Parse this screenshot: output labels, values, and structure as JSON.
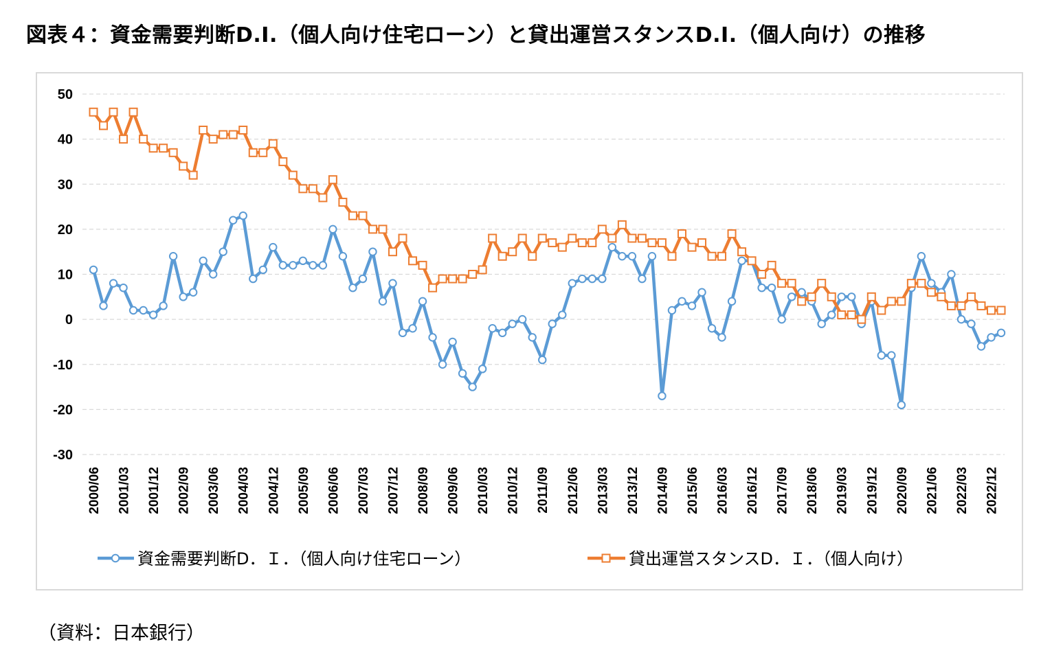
{
  "title": "図表４：資金需要判断D.I.（個人向け住宅ローン）と貸出運営スタンスD.I.（個人向け）の推移",
  "source": "（資料：日本銀行）",
  "colors": {
    "series1": "#5b9bd5",
    "series2": "#ed7d31",
    "grid": "#d9d9d9",
    "frame": "#d9d9d9"
  },
  "chart_data": {
    "type": "line",
    "title": "",
    "xlabel": "",
    "ylabel": "",
    "ylim": [
      -30,
      50
    ],
    "yticks": [
      50,
      40,
      30,
      20,
      10,
      0,
      -10,
      -20,
      -30
    ],
    "grid": true,
    "legend_position": "bottom",
    "x_tick_labels": [
      "2000/06",
      "2001/03",
      "2001/12",
      "2002/09",
      "2003/06",
      "2004/03",
      "2004/12",
      "2005/09",
      "2006/06",
      "2007/03",
      "2007/12",
      "2008/09",
      "2009/06",
      "2010/03",
      "2010/12",
      "2011/09",
      "2012/06",
      "2013/03",
      "2013/12",
      "2014/09",
      "2015/06",
      "2016/03",
      "2016/12",
      "2017/09",
      "2018/06",
      "2019/03",
      "2019/12",
      "2020/09",
      "2021/06",
      "2022/03",
      "2022/12"
    ],
    "categories": [
      "2000/06",
      "2000/09",
      "2000/12",
      "2001/03",
      "2001/06",
      "2001/09",
      "2001/12",
      "2002/03",
      "2002/06",
      "2002/09",
      "2002/12",
      "2003/03",
      "2003/06",
      "2003/09",
      "2003/12",
      "2004/03",
      "2004/06",
      "2004/09",
      "2004/12",
      "2005/03",
      "2005/06",
      "2005/09",
      "2005/12",
      "2006/03",
      "2006/06",
      "2006/09",
      "2006/12",
      "2007/03",
      "2007/06",
      "2007/09",
      "2007/12",
      "2008/03",
      "2008/06",
      "2008/09",
      "2008/12",
      "2009/03",
      "2009/06",
      "2009/09",
      "2009/12",
      "2010/03",
      "2010/06",
      "2010/09",
      "2010/12",
      "2011/03",
      "2011/06",
      "2011/09",
      "2011/12",
      "2012/03",
      "2012/06",
      "2012/09",
      "2012/12",
      "2013/03",
      "2013/06",
      "2013/09",
      "2013/12",
      "2014/03",
      "2014/06",
      "2014/09",
      "2014/12",
      "2015/03",
      "2015/06",
      "2015/09",
      "2015/12",
      "2016/03",
      "2016/06",
      "2016/09",
      "2016/12",
      "2017/03",
      "2017/06",
      "2017/09",
      "2017/12",
      "2018/03",
      "2018/06",
      "2018/09",
      "2018/12",
      "2019/03",
      "2019/06",
      "2019/09",
      "2019/12",
      "2020/03",
      "2020/06",
      "2020/09",
      "2020/12",
      "2021/03",
      "2021/06",
      "2021/09",
      "2021/12",
      "2022/03",
      "2022/06",
      "2022/09",
      "2022/12",
      "2023/03"
    ],
    "series": [
      {
        "name": "資金需要判断D．Ｉ．（個人向け住宅ローン）",
        "marker": "circle",
        "values": [
          11,
          3,
          8,
          7,
          2,
          2,
          1,
          3,
          14,
          5,
          6,
          13,
          10,
          15,
          22,
          23,
          9,
          11,
          16,
          12,
          12,
          13,
          12,
          12,
          20,
          14,
          7,
          9,
          15,
          4,
          8,
          -3,
          -2,
          4,
          -4,
          -10,
          -5,
          -12,
          -15,
          -11,
          -2,
          -3,
          -1,
          0,
          -4,
          -9,
          -1,
          1,
          8,
          9,
          9,
          9,
          16,
          14,
          14,
          9,
          14,
          -17,
          2,
          4,
          3,
          6,
          -2,
          -4,
          4,
          13,
          13,
          7,
          7,
          0,
          5,
          6,
          4,
          -1,
          1,
          5,
          5,
          -1,
          4,
          -8,
          -8,
          -19,
          7,
          14,
          8,
          6,
          10,
          0,
          -1,
          -6,
          -4,
          -3
        ]
      },
      {
        "name": "貸出運営スタンスD．Ｉ．（個人向け）",
        "marker": "square",
        "values": [
          46,
          43,
          46,
          40,
          46,
          40,
          38,
          38,
          37,
          34,
          32,
          42,
          40,
          41,
          41,
          42,
          37,
          37,
          39,
          35,
          32,
          29,
          29,
          27,
          31,
          26,
          23,
          23,
          20,
          20,
          15,
          18,
          13,
          12,
          7,
          9,
          9,
          9,
          10,
          11,
          18,
          14,
          15,
          18,
          14,
          18,
          17,
          16,
          18,
          17,
          17,
          20,
          18,
          21,
          18,
          18,
          17,
          17,
          14,
          19,
          16,
          17,
          14,
          14,
          19,
          15,
          13,
          10,
          12,
          8,
          8,
          4,
          5,
          8,
          5,
          1,
          1,
          0,
          5,
          2,
          4,
          4,
          8,
          8,
          6,
          5,
          3,
          3,
          5,
          3,
          2,
          2
        ]
      }
    ]
  }
}
